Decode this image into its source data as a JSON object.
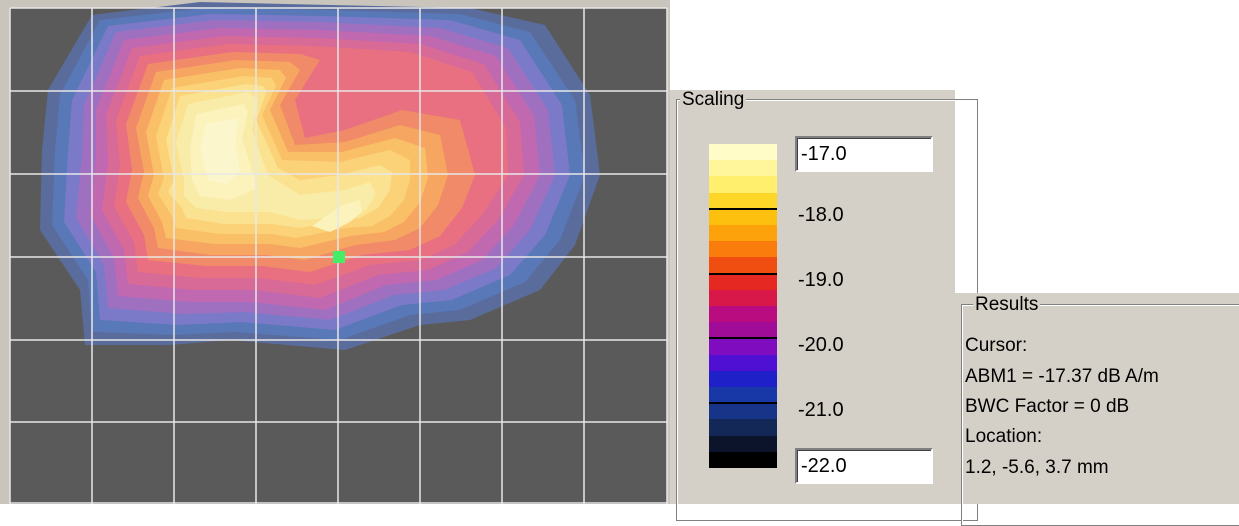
{
  "plot": {
    "background": "#5a5a5a",
    "grid_color": "#e8e8e8",
    "cursor_color": "#44ee66"
  },
  "scaling": {
    "title": "Scaling",
    "max_value": "-17.0",
    "min_value": "-22.0",
    "tick_labels": [
      "-18.0",
      "-19.0",
      "-20.0",
      "-21.0"
    ],
    "colors": [
      "#fffcc8",
      "#fff59a",
      "#ffef6c",
      "#fdd628",
      "#fdc00f",
      "#fda20a",
      "#f97c0d",
      "#f04e10",
      "#e52822",
      "#d81848",
      "#b80c80",
      "#a00c98",
      "#800cc0",
      "#5010d4",
      "#2020c8",
      "#1838a8",
      "#183488",
      "#142858",
      "#0c142c",
      "#000000"
    ]
  },
  "results": {
    "title": "Results",
    "lines": [
      "Cursor:",
      "ABM1 = -17.37 dB A/m",
      "BWC Factor = 0 dB",
      "Location:",
      "1.2, -5.6, 3.7 mm"
    ]
  }
}
